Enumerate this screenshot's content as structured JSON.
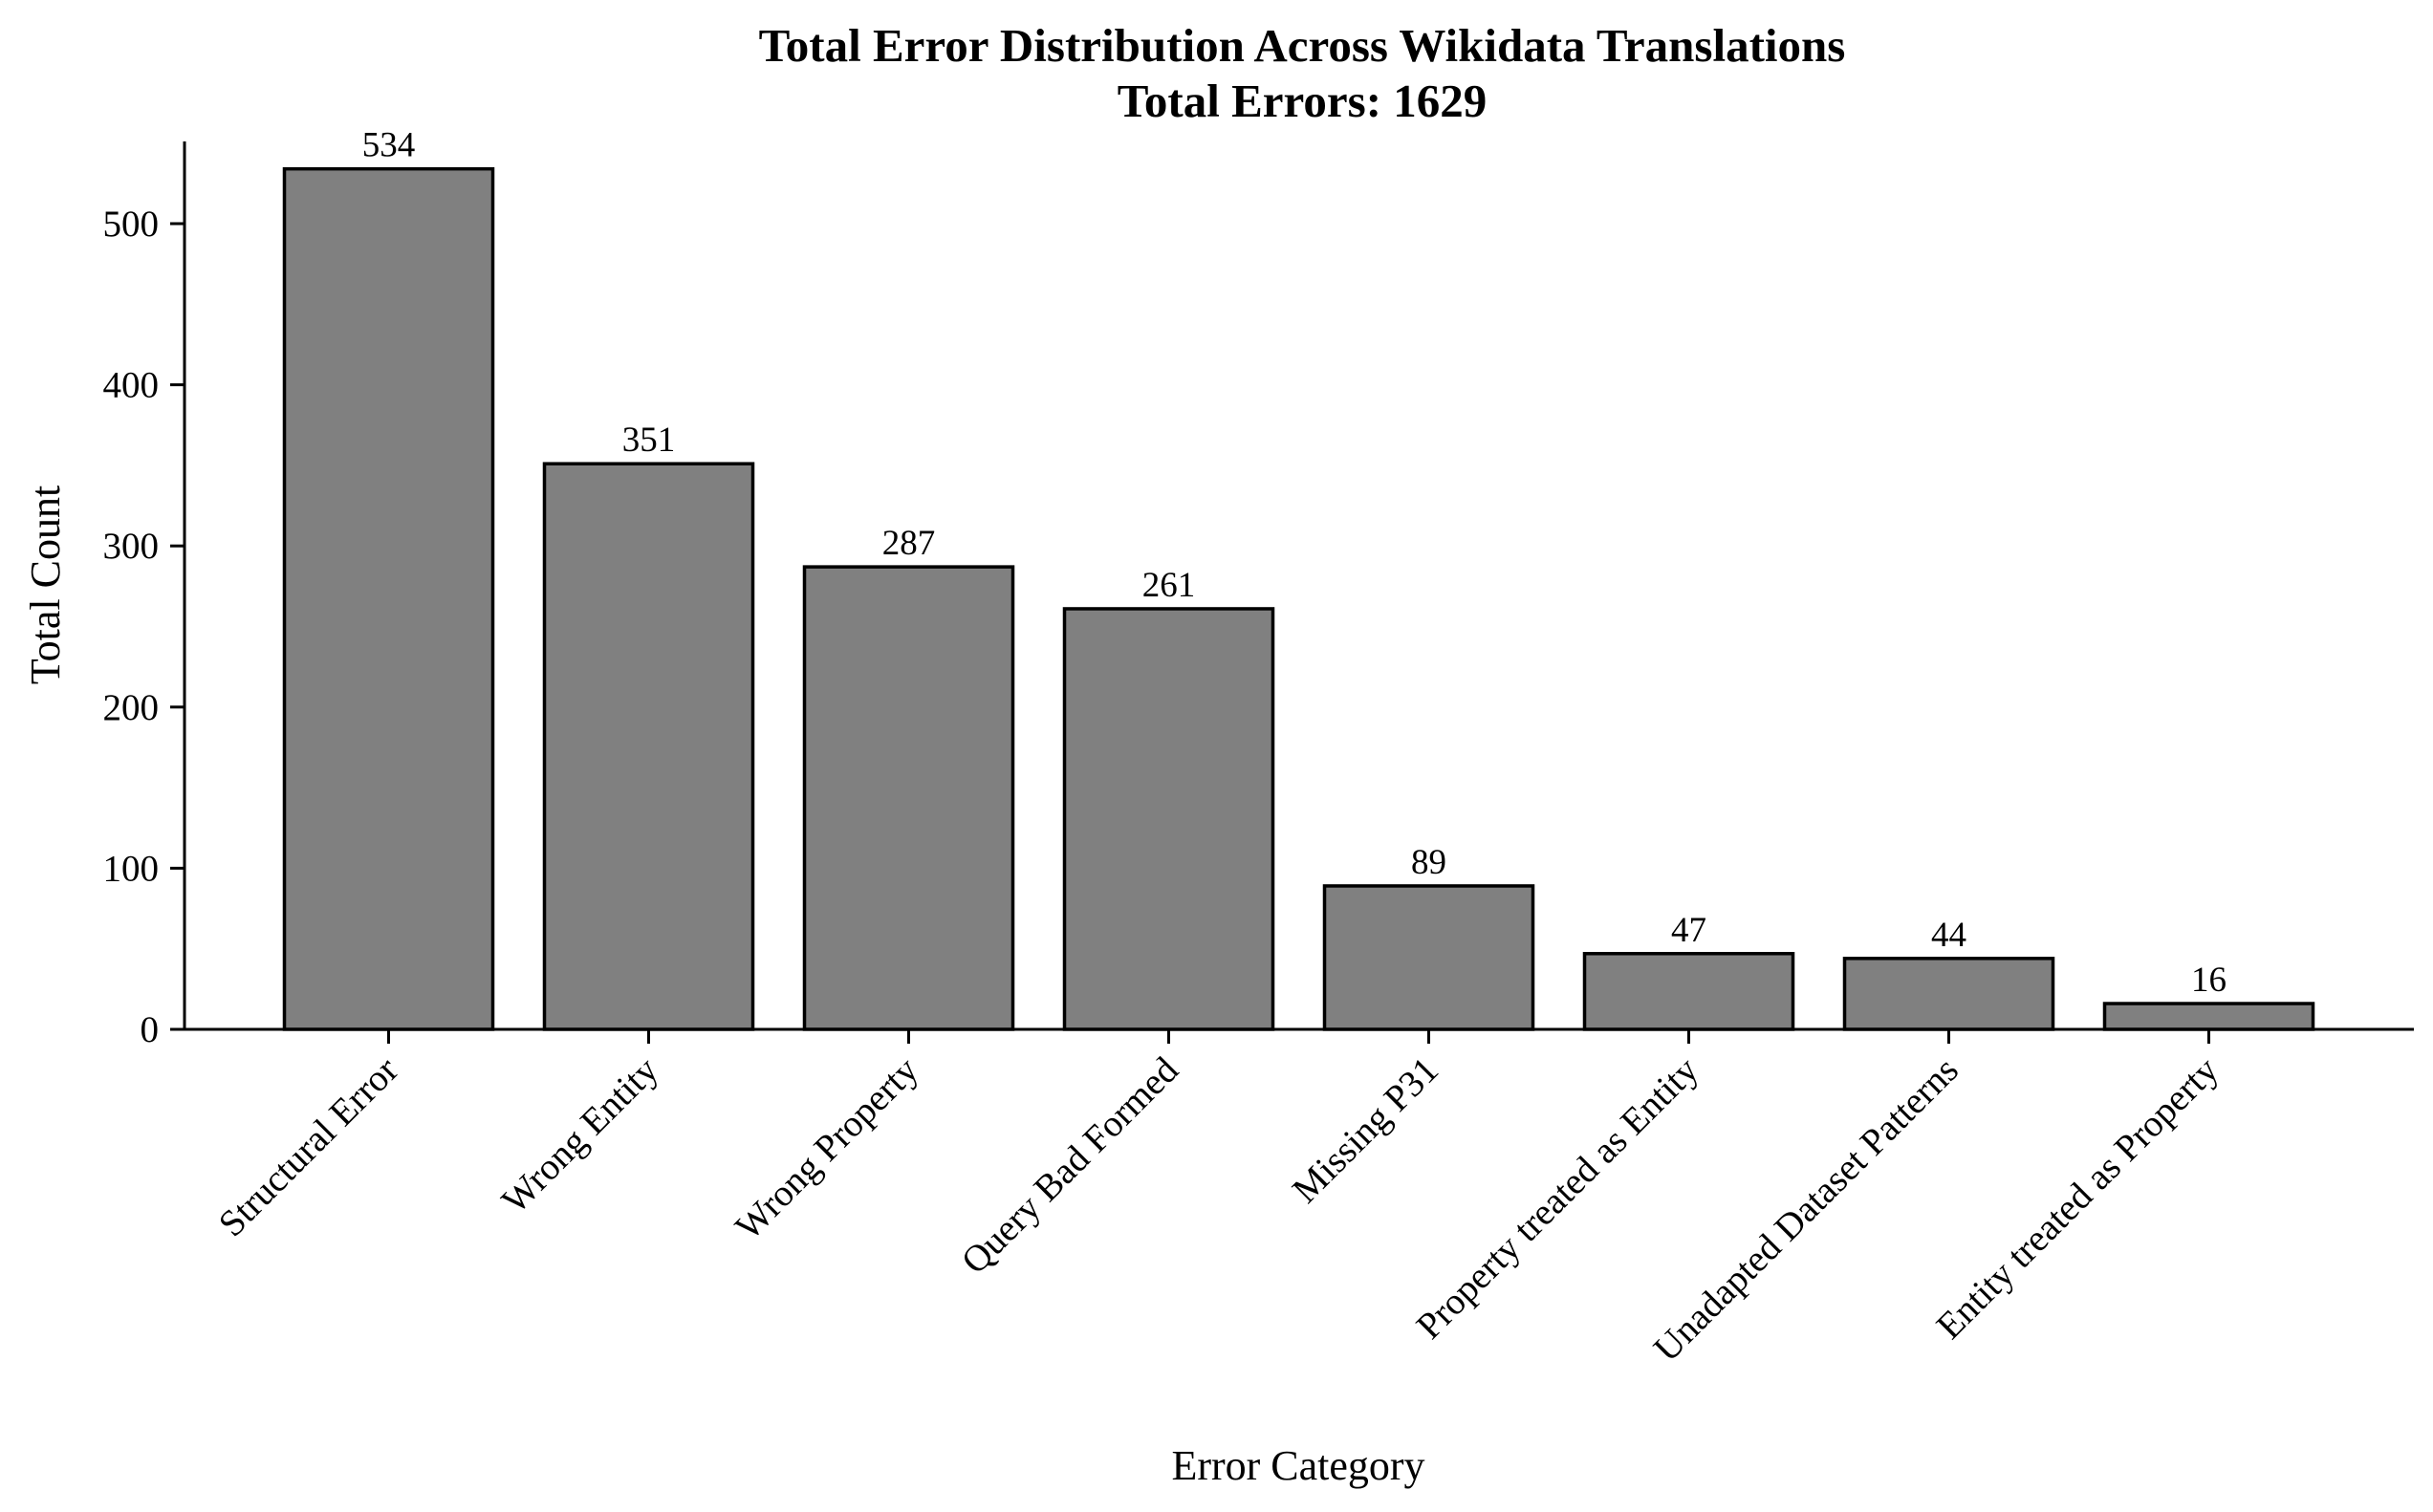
{
  "chart_data": {
    "type": "bar",
    "title": "Total Error Distribution Across Wikidata Translations",
    "subtitle": "Total Errors: 1629",
    "xlabel": "Error Category",
    "ylabel": "Total Count",
    "categories": [
      "Structural Error",
      "Wrong Entity",
      "Wrong Property",
      "Query Bad Formed",
      "Missing P31",
      "Property treated as Entity",
      "Unadapted Dataset Patterns",
      "Entity treated as Property"
    ],
    "values": [
      534,
      351,
      287,
      261,
      89,
      47,
      44,
      16
    ],
    "data_labels": [
      "534",
      "351",
      "287",
      "261",
      "89",
      "47",
      "44",
      "16"
    ],
    "yticks": [
      0,
      100,
      200,
      300,
      400,
      500
    ],
    "ylim": [
      0,
      550
    ],
    "bar_color": "#808080",
    "edge_color": "#000000",
    "grid": false
  }
}
